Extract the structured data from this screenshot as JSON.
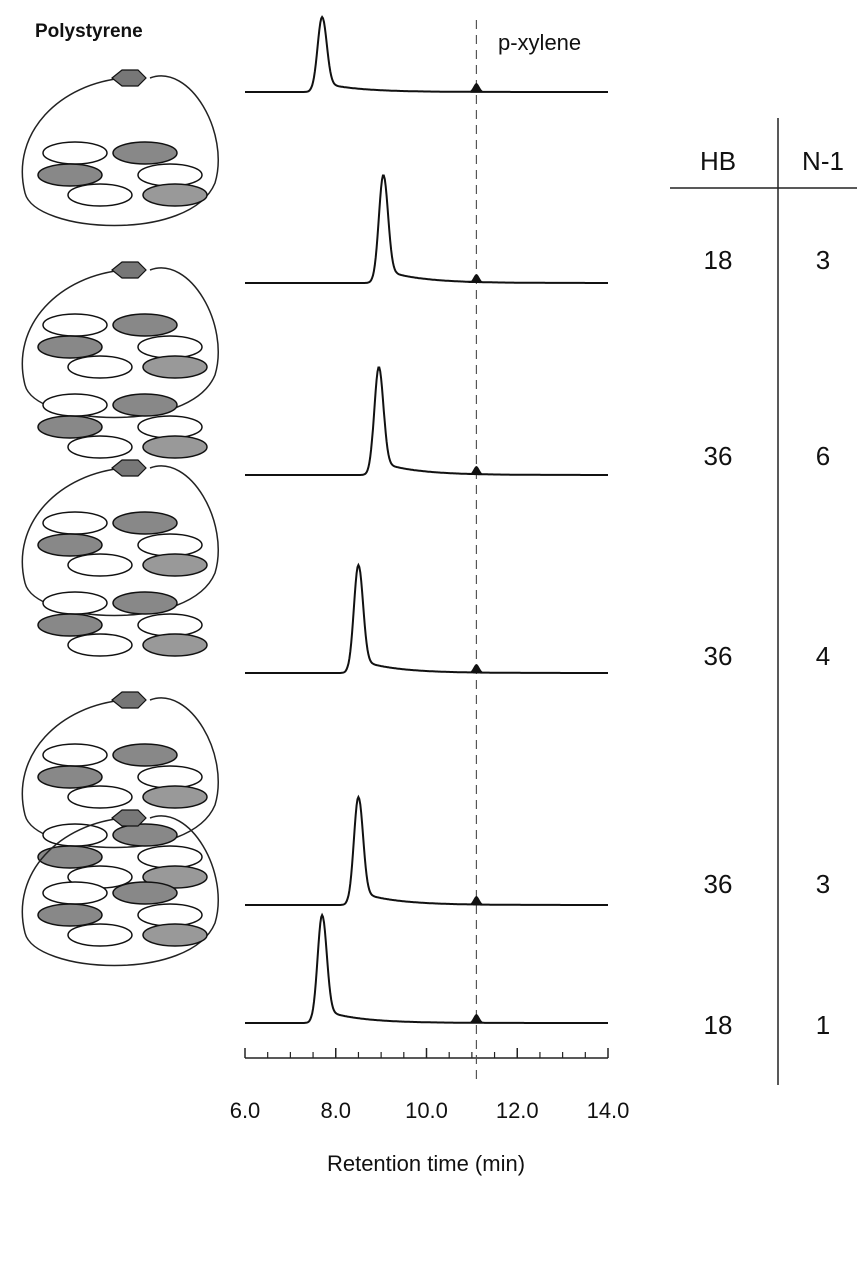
{
  "chart_data": {
    "type": "chromatogram",
    "x_label": "Retention time (min)",
    "xlim": [
      6.0,
      14.0
    ],
    "xticks": [
      {
        "value": 6,
        "label": "6.0"
      },
      {
        "value": 8,
        "label": "8.0"
      },
      {
        "value": 10,
        "label": "10.0"
      },
      {
        "value": 12,
        "label": "12.0"
      },
      {
        "value": 14,
        "label": "14.0"
      }
    ],
    "reference": {
      "label": "p-xylene",
      "x": 11.1
    },
    "table_headers": [
      "HB",
      "N-1"
    ],
    "traces": [
      {
        "name": "Polystyrene",
        "peak": 7.7
      },
      {
        "peak": 9.05,
        "hb": 18,
        "n1": 3
      },
      {
        "peak": 8.95,
        "hb": 36,
        "n1": 6
      },
      {
        "peak": 8.5,
        "hb": 36,
        "n1": 4
      },
      {
        "peak": 8.5,
        "hb": 36,
        "n1": 3
      },
      {
        "peak": 7.7,
        "hb": 18,
        "n1": 1
      }
    ]
  }
}
